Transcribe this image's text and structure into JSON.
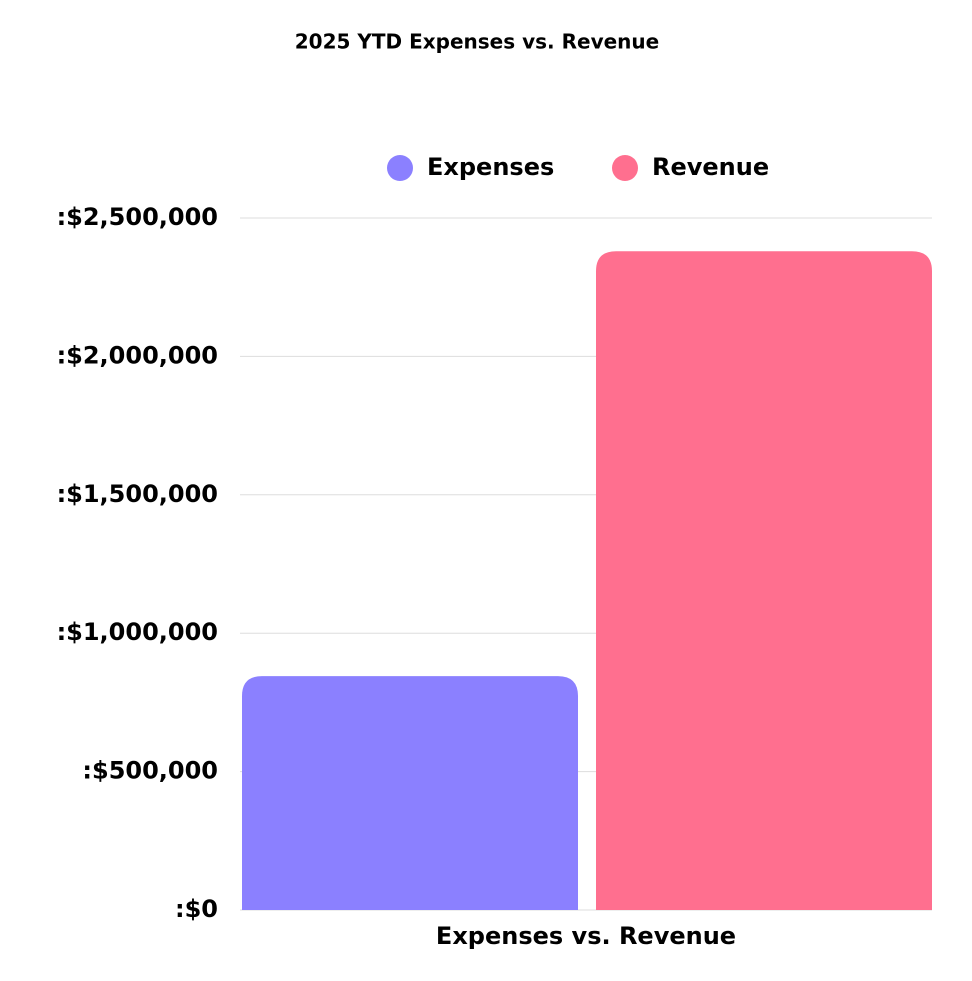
{
  "chart_data": {
    "type": "bar",
    "title": "2025 YTD Expenses vs. Revenue",
    "categories": [
      "Expenses vs. Revenue"
    ],
    "series": [
      {
        "name": "Expenses",
        "color": "#8b80ff",
        "values": [
          845000
        ]
      },
      {
        "name": "Revenue",
        "color": "#ff6f8f",
        "values": [
          2380000
        ]
      }
    ],
    "ylim": [
      0,
      2500000
    ],
    "yticks": [
      {
        "value": 0,
        "label": ":$0"
      },
      {
        "value": 500000,
        "label": ":$500,000"
      },
      {
        "value": 1000000,
        "label": ":$1,000,000"
      },
      {
        "value": 1500000,
        "label": ":$1,500,000"
      },
      {
        "value": 2000000,
        "label": ":$2,000,000"
      },
      {
        "value": 2500000,
        "label": ":$2,500,000"
      }
    ],
    "grid": true,
    "legend": "top"
  }
}
